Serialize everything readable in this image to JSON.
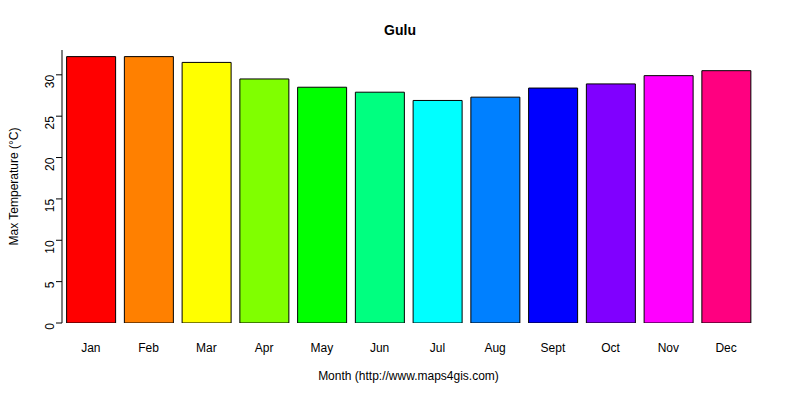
{
  "chart_data": {
    "type": "bar",
    "title": "Gulu",
    "x_label": "Month (http://www.maps4gis.com)",
    "y_label": "Max Temperature (°C)",
    "categories": [
      "Jan",
      "Feb",
      "Mar",
      "Apr",
      "May",
      "Jun",
      "Jul",
      "Aug",
      "Sept",
      "Oct",
      "Nov",
      "Dec"
    ],
    "values": [
      32.2,
      32.2,
      31.5,
      29.5,
      28.5,
      27.9,
      26.9,
      27.3,
      28.4,
      28.9,
      29.9,
      30.5
    ],
    "colors": [
      "#ff0000",
      "#ff8000",
      "#ffff00",
      "#80ff00",
      "#00ff00",
      "#00ff80",
      "#00ffff",
      "#0080ff",
      "#0000ff",
      "#8000ff",
      "#ff00ff",
      "#ff0080"
    ],
    "ylim": [
      0,
      33
    ],
    "yticks": [
      0,
      5,
      10,
      15,
      20,
      25,
      30
    ],
    "grid": false
  }
}
